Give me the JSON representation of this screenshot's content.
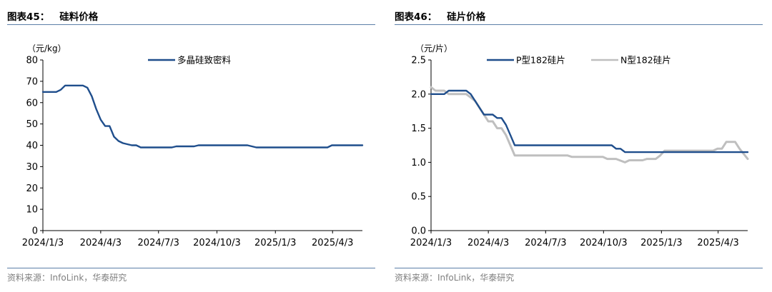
{
  "charts": [
    {
      "fig_label": "图表45：",
      "fig_name": "硅料价格",
      "source": "资料来源：InfoLink，华泰研究",
      "chart_data": {
        "type": "line",
        "unit_label": "（元/kg）",
        "ylim": [
          0,
          80
        ],
        "yticks": [
          "0",
          "10",
          "20",
          "30",
          "40",
          "50",
          "60",
          "70",
          "80"
        ],
        "xlim": [
          "2024-01-03",
          "2025-05-20"
        ],
        "xticks": [
          {
            "date": "2024-01-03",
            "label": "2024/1/3"
          },
          {
            "date": "2024-04-03",
            "label": "2024/4/3"
          },
          {
            "date": "2024-07-03",
            "label": "2024/7/3"
          },
          {
            "date": "2024-10-03",
            "label": "2024/10/3"
          },
          {
            "date": "2025-01-03",
            "label": "2025/1/3"
          },
          {
            "date": "2025-04-03",
            "label": "2025/4/3"
          }
        ],
        "legend_position": "top-center",
        "grid": false,
        "series": [
          {
            "name": "多晶硅致密料",
            "color": "#1f4e8c",
            "points": [
              [
                "2024-01-03",
                65
              ],
              [
                "2024-01-24",
                65
              ],
              [
                "2024-01-31",
                66
              ],
              [
                "2024-02-07",
                68
              ],
              [
                "2024-03-06",
                68
              ],
              [
                "2024-03-13",
                67
              ],
              [
                "2024-03-20",
                63
              ],
              [
                "2024-03-27",
                57
              ],
              [
                "2024-04-03",
                52
              ],
              [
                "2024-04-10",
                49
              ],
              [
                "2024-04-17",
                49
              ],
              [
                "2024-04-24",
                44
              ],
              [
                "2024-05-01",
                42
              ],
              [
                "2024-05-08",
                41
              ],
              [
                "2024-05-22",
                40
              ],
              [
                "2024-05-29",
                40
              ],
              [
                "2024-06-05",
                39
              ],
              [
                "2024-07-24",
                39
              ],
              [
                "2024-07-31",
                39.5
              ],
              [
                "2024-08-28",
                39.5
              ],
              [
                "2024-09-04",
                40
              ],
              [
                "2024-11-20",
                40
              ],
              [
                "2024-12-04",
                39
              ],
              [
                "2025-03-26",
                39
              ],
              [
                "2025-04-02",
                40
              ],
              [
                "2025-05-20",
                40
              ]
            ]
          }
        ]
      }
    },
    {
      "fig_label": "图表46：",
      "fig_name": "硅片价格",
      "source": "资料来源：InfoLink，华泰研究",
      "chart_data": {
        "type": "line",
        "unit_label": "（元/片）",
        "ylim": [
          0,
          2.5
        ],
        "yticks": [
          "0.0",
          "0.5",
          "1.0",
          "1.5",
          "2.0",
          "2.5"
        ],
        "xlim": [
          "2024-01-03",
          "2025-05-20"
        ],
        "xticks": [
          {
            "date": "2024-01-03",
            "label": "2024/1/3"
          },
          {
            "date": "2024-04-03",
            "label": "2024/4/3"
          },
          {
            "date": "2024-07-03",
            "label": "2024/7/3"
          },
          {
            "date": "2024-10-03",
            "label": "2024/10/3"
          },
          {
            "date": "2025-01-03",
            "label": "2025/1/3"
          },
          {
            "date": "2025-04-03",
            "label": "2025/4/3"
          }
        ],
        "legend_position": "top-center",
        "grid": false,
        "series": [
          {
            "name": "P型182硅片",
            "color": "#1f4e8c",
            "points": [
              [
                "2024-01-03",
                2.0
              ],
              [
                "2024-01-24",
                2.0
              ],
              [
                "2024-01-31",
                2.05
              ],
              [
                "2024-02-28",
                2.05
              ],
              [
                "2024-03-06",
                2.0
              ],
              [
                "2024-03-13",
                1.9
              ],
              [
                "2024-03-20",
                1.8
              ],
              [
                "2024-03-27",
                1.7
              ],
              [
                "2024-04-10",
                1.7
              ],
              [
                "2024-04-17",
                1.65
              ],
              [
                "2024-04-24",
                1.65
              ],
              [
                "2024-05-01",
                1.55
              ],
              [
                "2024-05-08",
                1.4
              ],
              [
                "2024-05-15",
                1.25
              ],
              [
                "2024-10-16",
                1.25
              ],
              [
                "2024-10-23",
                1.2
              ],
              [
                "2024-10-30",
                1.2
              ],
              [
                "2024-11-06",
                1.15
              ],
              [
                "2025-05-20",
                1.15
              ]
            ]
          },
          {
            "name": "N型182硅片",
            "color": "#bfbfbf",
            "points": [
              [
                "2024-01-03",
                2.1
              ],
              [
                "2024-01-10",
                2.05
              ],
              [
                "2024-01-24",
                2.05
              ],
              [
                "2024-01-31",
                2.0
              ],
              [
                "2024-02-28",
                2.0
              ],
              [
                "2024-03-06",
                1.95
              ],
              [
                "2024-03-13",
                1.9
              ],
              [
                "2024-03-20",
                1.8
              ],
              [
                "2024-03-27",
                1.7
              ],
              [
                "2024-04-03",
                1.6
              ],
              [
                "2024-04-10",
                1.6
              ],
              [
                "2024-04-17",
                1.5
              ],
              [
                "2024-04-24",
                1.5
              ],
              [
                "2024-05-01",
                1.4
              ],
              [
                "2024-05-08",
                1.25
              ],
              [
                "2024-05-15",
                1.1
              ],
              [
                "2024-08-07",
                1.1
              ],
              [
                "2024-08-14",
                1.08
              ],
              [
                "2024-10-02",
                1.08
              ],
              [
                "2024-10-09",
                1.05
              ],
              [
                "2024-10-23",
                1.05
              ],
              [
                "2024-11-06",
                1.0
              ],
              [
                "2024-11-13",
                1.03
              ],
              [
                "2024-12-04",
                1.03
              ],
              [
                "2024-12-11",
                1.05
              ],
              [
                "2024-12-25",
                1.05
              ],
              [
                "2025-01-01",
                1.1
              ],
              [
                "2025-01-08",
                1.17
              ],
              [
                "2025-03-26",
                1.17
              ],
              [
                "2025-04-02",
                1.2
              ],
              [
                "2025-04-09",
                1.2
              ],
              [
                "2025-04-16",
                1.3
              ],
              [
                "2025-04-30",
                1.3
              ],
              [
                "2025-05-07",
                1.2
              ],
              [
                "2025-05-14",
                1.12
              ],
              [
                "2025-05-20",
                1.05
              ]
            ]
          }
        ]
      }
    }
  ]
}
